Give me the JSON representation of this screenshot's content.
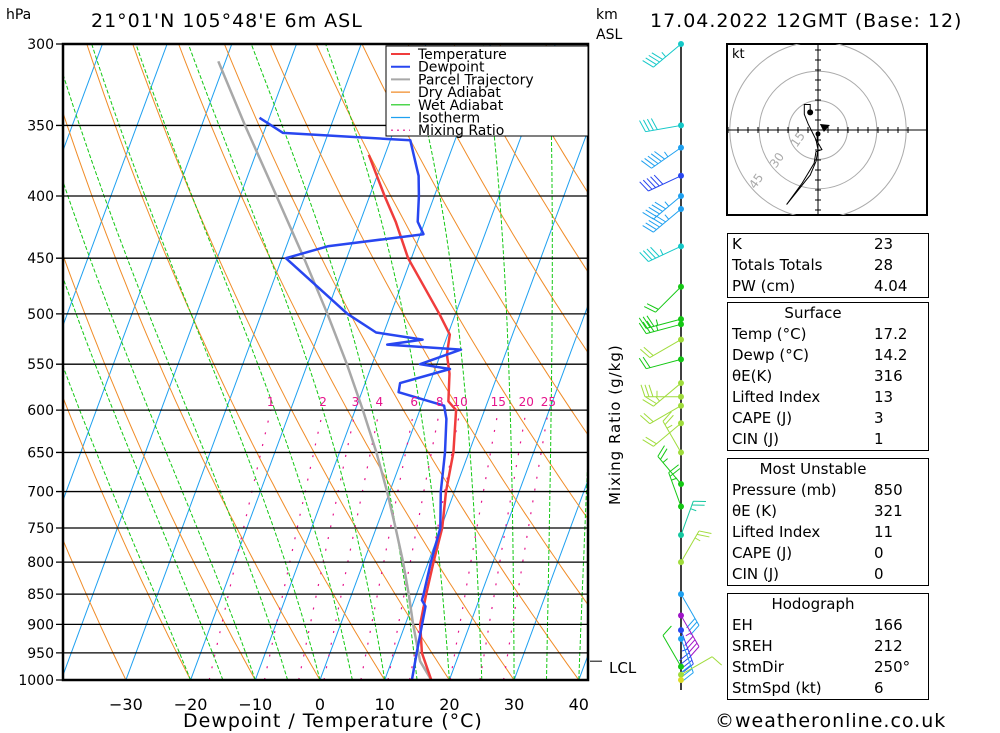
{
  "header": {
    "hpa_label": "hPa",
    "location": "21°01'N 105°48'E 6m ASL",
    "km_label": "km",
    "asl_label": "ASL",
    "datetime": "17.04.2022 12GMT (Base: 12)"
  },
  "footer": {
    "copyright": "©weatheronline.co.uk"
  },
  "colors": {
    "temperature": "#f03c3c",
    "dewpoint": "#2846f0",
    "parcel": "#a8a8a8",
    "dry_adiabat": "#f08c28",
    "wet_adiabat": "#14c814",
    "isotherm": "#1ea0f0",
    "mixing_ratio": "#e6148c"
  },
  "chart_data": [
    {
      "type": "line",
      "title": "Skew-T log-P sounding",
      "xlabel": "Dewpoint / Temperature (°C)",
      "ylabel": "hPa",
      "xlim": [
        -40,
        40
      ],
      "ylim": [
        1000,
        300
      ],
      "x_ticks": [
        "−30",
        "−20",
        "−10",
        "0",
        "10",
        "20",
        "30",
        "40"
      ],
      "x_tick_values": [
        -30,
        -20,
        -10,
        0,
        10,
        20,
        30,
        40
      ],
      "y_ticks": [
        "300",
        "350",
        "400",
        "450",
        "500",
        "550",
        "600",
        "650",
        "700",
        "750",
        "800",
        "850",
        "900",
        "950",
        "1000"
      ],
      "y_tick_values": [
        300,
        350,
        400,
        450,
        500,
        550,
        600,
        650,
        700,
        750,
        800,
        850,
        900,
        950,
        1000
      ],
      "legend": {
        "placement": "top-right",
        "entries": [
          "Temperature",
          "Dewpoint",
          "Parcel Trajectory",
          "Dry Adiabat",
          "Wet Adiabat",
          "Isotherm",
          "Mixing Ratio"
        ]
      },
      "mixing_ratio_axis_label": "Mixing Ratio (g/kg)",
      "mixing_ratio_labels": [
        "1",
        "2",
        "3",
        "4",
        "6",
        "8",
        "10",
        "15",
        "20",
        "25"
      ],
      "lcl_label": "LCL",
      "lcl_pressure": 965,
      "series": [
        {
          "name": "Temperature",
          "points": [
            [
              1000,
              17.2
            ],
            [
              950,
              14.2
            ],
            [
              900,
              12.3
            ],
            [
              850,
              11.5
            ],
            [
              800,
              10.8
            ],
            [
              750,
              10.2
            ],
            [
              700,
              8.7
            ],
            [
              650,
              7.6
            ],
            [
              600,
              5.6
            ],
            [
              590,
              3.9
            ],
            [
              560,
              2.5
            ],
            [
              540,
              1.0
            ],
            [
              520,
              0.3
            ],
            [
              500,
              -2.5
            ],
            [
              450,
              -10.5
            ],
            [
              420,
              -14.5
            ],
            [
              400,
              -17.7
            ],
            [
              370,
              -22.5
            ]
          ]
        },
        {
          "name": "Dewpoint",
          "points": [
            [
              1000,
              14.2
            ],
            [
              950,
              13.4
            ],
            [
              900,
              12.6
            ],
            [
              870,
              12.1
            ],
            [
              860,
              11.2
            ],
            [
              850,
              11.1
            ],
            [
              800,
              10.4
            ],
            [
              750,
              9.9
            ],
            [
              700,
              7.9
            ],
            [
              650,
              6.3
            ],
            [
              610,
              4.6
            ],
            [
              595,
              3.5
            ],
            [
              580,
              -4.3
            ],
            [
              570,
              -4.6
            ],
            [
              555,
              2.3
            ],
            [
              550,
              -2.6
            ],
            [
              535,
              2.9
            ],
            [
              530,
              -8.8
            ],
            [
              525,
              -3.6
            ],
            [
              518,
              -11.2
            ],
            [
              500,
              -16.7
            ],
            [
              450,
              -29.4
            ],
            [
              440,
              -23.6
            ],
            [
              430,
              -9.5
            ],
            [
              420,
              -11.1
            ],
            [
              400,
              -12.4
            ],
            [
              385,
              -13.6
            ],
            [
              360,
              -16.9
            ],
            [
              355,
              -37.0
            ],
            [
              345,
              -41.5
            ]
          ]
        },
        {
          "name": "Parcel Trajectory",
          "points": [
            [
              1000,
              17.2
            ],
            [
              965,
              14.4
            ],
            [
              900,
              11.2
            ],
            [
              850,
              8.8
            ],
            [
              800,
              6.1
            ],
            [
              750,
              3.0
            ],
            [
              700,
              -0.4
            ],
            [
              650,
              -4.3
            ],
            [
              600,
              -8.8
            ],
            [
              550,
              -13.9
            ],
            [
              500,
              -19.8
            ],
            [
              450,
              -26.6
            ],
            [
              400,
              -34.4
            ],
            [
              350,
              -43.3
            ],
            [
              310,
              -51.1
            ]
          ]
        }
      ]
    },
    {
      "type": "scatter",
      "title": "Hodograph",
      "unit_label": "kt",
      "ring_labels": [
        "15",
        "30",
        "45"
      ],
      "ring_values": [
        15,
        30,
        45
      ],
      "trace": [
        [
          -0.5,
          -2
        ],
        [
          -0.3,
          -6
        ],
        [
          2,
          -10
        ],
        [
          -1,
          -11
        ],
        [
          -2,
          -17
        ],
        [
          -8,
          -27
        ],
        [
          -16,
          -38
        ],
        [
          -4,
          -23
        ],
        [
          -1,
          -16
        ],
        [
          0,
          -10
        ],
        [
          -1,
          -5
        ],
        [
          -4,
          1
        ],
        [
          -5,
          3
        ],
        [
          -7,
          8
        ],
        [
          -7,
          13
        ],
        [
          -4,
          13
        ],
        [
          -4,
          9
        ]
      ],
      "marker_surface": [
        -4,
        9
      ],
      "marker_top": [
        0,
        -2
      ],
      "storm_motion_marker": [
        3,
        1
      ]
    }
  ],
  "indices": {
    "general": [
      {
        "label": "K",
        "value": "23"
      },
      {
        "label": "Totals Totals",
        "value": "28"
      },
      {
        "label": "PW (cm)",
        "value": "4.04"
      }
    ],
    "surface": {
      "title": "Surface",
      "rows": [
        {
          "label": "Temp (°C)",
          "value": "17.2"
        },
        {
          "label": "Dewp (°C)",
          "value": "14.2"
        },
        {
          "label": "θE(K)",
          "value": "316"
        },
        {
          "label": "Lifted Index",
          "value": "13"
        },
        {
          "label": "CAPE (J)",
          "value": "3"
        },
        {
          "label": "CIN (J)",
          "value": "1"
        }
      ]
    },
    "most_unstable": {
      "title": "Most Unstable",
      "rows": [
        {
          "label": "Pressure (mb)",
          "value": "850"
        },
        {
          "label": "θE (K)",
          "value": "321"
        },
        {
          "label": "Lifted Index",
          "value": "11"
        },
        {
          "label": "CAPE (J)",
          "value": "0"
        },
        {
          "label": "CIN (J)",
          "value": "0"
        }
      ]
    },
    "hodograph": {
      "title": "Hodograph",
      "rows": [
        {
          "label": "EH",
          "value": "166"
        },
        {
          "label": "SREH",
          "value": "212"
        },
        {
          "label": "StmDir",
          "value": "250°"
        },
        {
          "label": "StmSpd (kt)",
          "value": "6"
        }
      ]
    }
  },
  "wind_profile": {
    "levels": [
      {
        "p": 300,
        "dir": 230,
        "spd": 35,
        "color": "#14c8c8"
      },
      {
        "p": 350,
        "dir": 260,
        "spd": 40,
        "color": "#14c8c8"
      },
      {
        "p": 365,
        "dir": 235,
        "spd": 45,
        "color": "#1ea0f0"
      },
      {
        "p": 385,
        "dir": 245,
        "spd": 50,
        "color": "#2846f0"
      },
      {
        "p": 400,
        "dir": 230,
        "spd": 45,
        "color": "#1ea0f0"
      },
      {
        "p": 410,
        "dir": 230,
        "spd": 45,
        "color": "#1ea0f0"
      },
      {
        "p": 440,
        "dir": 245,
        "spd": 35,
        "color": "#14c8c8"
      },
      {
        "p": 475,
        "dir": 225,
        "spd": 20,
        "color": "#14c814"
      },
      {
        "p": 505,
        "dir": 255,
        "spd": 25,
        "color": "#14c814"
      },
      {
        "p": 510,
        "dir": 255,
        "spd": 25,
        "color": "#14c814"
      },
      {
        "p": 525,
        "dir": 240,
        "spd": 20,
        "color": "#a0dc3c"
      },
      {
        "p": 545,
        "dir": 255,
        "spd": 20,
        "color": "#14c814"
      },
      {
        "p": 570,
        "dir": 230,
        "spd": 15,
        "color": "#a0dc3c"
      },
      {
        "p": 585,
        "dir": 270,
        "spd": 25,
        "color": "#a0dc3c"
      },
      {
        "p": 595,
        "dir": 240,
        "spd": 20,
        "color": "#a0dc3c"
      },
      {
        "p": 615,
        "dir": 230,
        "spd": 20,
        "color": "#a0dc3c"
      },
      {
        "p": 650,
        "dir": 330,
        "spd": 15,
        "color": "#a0dc3c"
      },
      {
        "p": 690,
        "dir": 320,
        "spd": 15,
        "color": "#14c814"
      },
      {
        "p": 720,
        "dir": 340,
        "spd": 15,
        "color": "#14c814"
      },
      {
        "p": 760,
        "dir": 20,
        "spd": 15,
        "color": "#14c8a0"
      },
      {
        "p": 800,
        "dir": 30,
        "spd": 15,
        "color": "#a0dc3c"
      },
      {
        "p": 850,
        "dir": 150,
        "spd": 30,
        "color": "#1ea0f0"
      },
      {
        "p": 885,
        "dir": 150,
        "spd": 35,
        "color": "#a014c8"
      },
      {
        "p": 910,
        "dir": 160,
        "spd": 35,
        "color": "#2846f0"
      },
      {
        "p": 925,
        "dir": 160,
        "spd": 30,
        "color": "#1ea0f0"
      },
      {
        "p": 975,
        "dir": 330,
        "spd": 10,
        "color": "#14c814"
      },
      {
        "p": 990,
        "dir": 60,
        "spd": 10,
        "color": "#a0dc3c"
      },
      {
        "p": 1000,
        "dir": 0,
        "spd": 0,
        "color": "#dcdc28"
      }
    ]
  }
}
